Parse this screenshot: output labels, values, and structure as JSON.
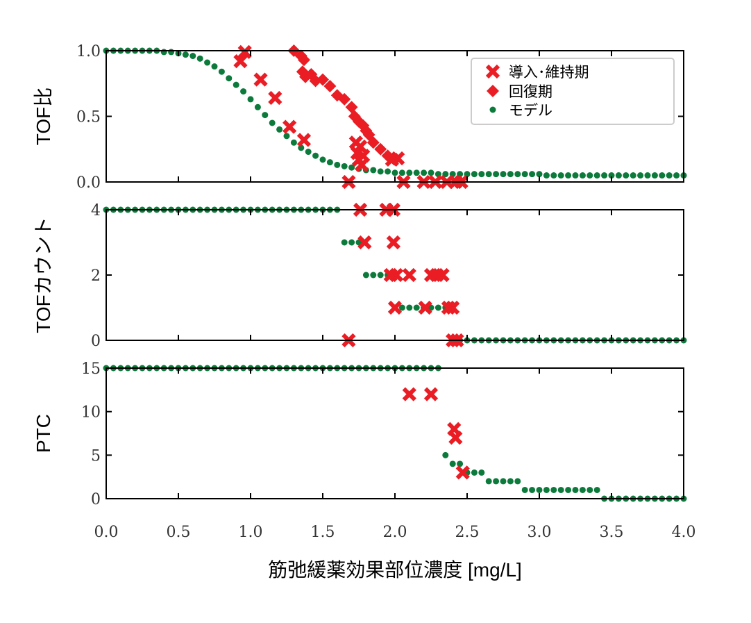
{
  "chart_data": {
    "type": "scatter",
    "xlabel": "筋弛緩薬効果部位濃度 [mg/L]",
    "xlim": [
      0,
      4.0
    ],
    "xticks": [
      "0.0",
      "0.5",
      "1.0",
      "1.5",
      "2.0",
      "2.5",
      "3.0",
      "3.5",
      "4.0"
    ],
    "legend": {
      "placement": "top-right of top panel",
      "entries": [
        "導入･維持期",
        "回復期",
        "モデル"
      ]
    },
    "colors": {
      "observed": "#ea1c24",
      "model": "#0b7a3b"
    },
    "model_x_start": 0,
    "model_x_step": 0.05,
    "panels": [
      {
        "ylabel": "TOF比",
        "ylim": [
          0,
          1.0
        ],
        "yticks": [
          "0.0",
          "0.5",
          "1.0"
        ],
        "model": [
          1.0,
          1.0,
          1.0,
          1.0,
          1.0,
          1.0,
          1.0,
          1.0,
          0.99,
          0.99,
          0.98,
          0.97,
          0.96,
          0.94,
          0.91,
          0.88,
          0.84,
          0.79,
          0.74,
          0.69,
          0.63,
          0.57,
          0.51,
          0.45,
          0.4,
          0.35,
          0.3,
          0.26,
          0.23,
          0.2,
          0.17,
          0.15,
          0.13,
          0.12,
          0.11,
          0.1,
          0.09,
          0.09,
          0.08,
          0.08,
          0.07,
          0.07,
          0.07,
          0.07,
          0.07,
          0.07,
          0.06,
          0.06,
          0.06,
          0.06,
          0.06,
          0.06,
          0.06,
          0.06,
          0.06,
          0.06,
          0.06,
          0.06,
          0.06,
          0.06,
          0.06,
          0.05,
          0.05,
          0.05,
          0.05,
          0.05,
          0.05,
          0.05,
          0.05,
          0.05,
          0.05,
          0.05,
          0.05,
          0.05,
          0.05,
          0.05,
          0.05,
          0.05,
          0.05,
          0.05,
          0.05
        ],
        "induction": [
          [
            0.93,
            0.92
          ],
          [
            0.96,
            0.99
          ],
          [
            1.07,
            0.78
          ],
          [
            1.17,
            0.64
          ],
          [
            1.27,
            0.42
          ],
          [
            1.37,
            0.32
          ],
          [
            1.68,
            0.0
          ],
          [
            1.73,
            0.3
          ],
          [
            1.74,
            0.22
          ],
          [
            1.75,
            0.17
          ],
          [
            1.76,
            0.27
          ],
          [
            1.77,
            0.13
          ],
          [
            1.78,
            0.2
          ],
          [
            1.98,
            0.17
          ],
          [
            2.02,
            0.18
          ],
          [
            2.06,
            0.0
          ],
          [
            2.2,
            0.0
          ],
          [
            2.28,
            0.0
          ],
          [
            2.36,
            0.0
          ],
          [
            2.42,
            0.0
          ],
          [
            2.46,
            0.0
          ]
        ],
        "recovery": [
          [
            1.3,
            1.0
          ],
          [
            1.35,
            0.96
          ],
          [
            1.37,
            0.93
          ],
          [
            1.36,
            0.84
          ],
          [
            1.38,
            0.8
          ],
          [
            1.42,
            0.82
          ],
          [
            1.45,
            0.77
          ],
          [
            1.5,
            0.78
          ],
          [
            1.55,
            0.73
          ],
          [
            1.6,
            0.66
          ],
          [
            1.65,
            0.63
          ],
          [
            1.7,
            0.57
          ],
          [
            1.72,
            0.5
          ],
          [
            1.75,
            0.46
          ],
          [
            1.78,
            0.43
          ],
          [
            1.8,
            0.39
          ],
          [
            1.82,
            0.36
          ],
          [
            1.85,
            0.3
          ],
          [
            1.9,
            0.25
          ],
          [
            1.95,
            0.2
          ],
          [
            2.0,
            0.17
          ]
        ]
      },
      {
        "ylabel": "TOFカウント",
        "ylim": [
          0,
          4
        ],
        "yticks": [
          "0",
          "2",
          "4"
        ],
        "model": [
          4,
          4,
          4,
          4,
          4,
          4,
          4,
          4,
          4,
          4,
          4,
          4,
          4,
          4,
          4,
          4,
          4,
          4,
          4,
          4,
          4,
          4,
          4,
          4,
          4,
          4,
          4,
          4,
          4,
          4,
          4,
          4,
          4,
          3,
          3,
          3,
          2,
          2,
          2,
          2,
          2,
          1,
          1,
          1,
          1,
          1,
          1,
          1,
          1,
          0,
          0,
          0,
          0,
          0,
          0,
          0,
          0,
          0,
          0,
          0,
          0,
          0,
          0,
          0,
          0,
          0,
          0,
          0,
          0,
          0,
          0,
          0,
          0,
          0,
          0,
          0,
          0,
          0,
          0,
          0,
          0
        ],
        "induction": [
          [
            1.76,
            4
          ],
          [
            1.94,
            4
          ],
          [
            1.99,
            4
          ],
          [
            1.79,
            3
          ],
          [
            1.99,
            3
          ],
          [
            1.97,
            2
          ],
          [
            2.01,
            2
          ],
          [
            2.1,
            2
          ],
          [
            2.25,
            2
          ],
          [
            2.29,
            2
          ],
          [
            2.33,
            2
          ],
          [
            2.0,
            1
          ],
          [
            2.21,
            1
          ],
          [
            2.37,
            1
          ],
          [
            2.4,
            1
          ],
          [
            1.68,
            0
          ],
          [
            2.4,
            0
          ],
          [
            2.43,
            0
          ]
        ],
        "recovery": []
      },
      {
        "ylabel": "PTC",
        "ylim": [
          0,
          15
        ],
        "yticks": [
          "0",
          "5",
          "10",
          "15"
        ],
        "model": [
          15,
          15,
          15,
          15,
          15,
          15,
          15,
          15,
          15,
          15,
          15,
          15,
          15,
          15,
          15,
          15,
          15,
          15,
          15,
          15,
          15,
          15,
          15,
          15,
          15,
          15,
          15,
          15,
          15,
          15,
          15,
          15,
          15,
          15,
          15,
          15,
          15,
          15,
          15,
          15,
          15,
          15,
          15,
          15,
          15,
          15,
          15,
          5,
          4,
          4,
          3,
          3,
          3,
          2,
          2,
          2,
          2,
          2,
          1,
          1,
          1,
          1,
          1,
          1,
          1,
          1,
          1,
          1,
          1,
          0,
          0,
          0,
          0,
          0,
          0,
          0,
          0,
          0,
          0,
          0,
          0
        ],
        "induction": [
          [
            2.1,
            12
          ],
          [
            2.25,
            12
          ],
          [
            2.41,
            8
          ],
          [
            2.42,
            7
          ],
          [
            2.47,
            3
          ]
        ],
        "recovery": []
      }
    ]
  }
}
